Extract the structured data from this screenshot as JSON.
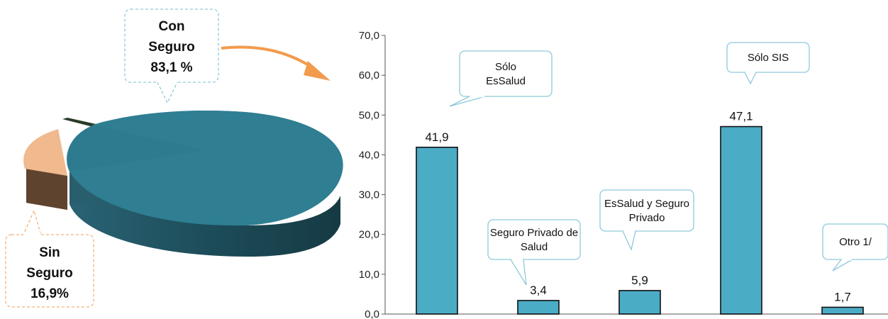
{
  "pie": {
    "slices": [
      {
        "label_lines": [
          "Con",
          "Seguro",
          "83,1 %"
        ],
        "value": 83.1,
        "color": "#2e7b8f"
      },
      {
        "label_lines": [
          "Sin",
          "Seguro",
          "16,9%"
        ],
        "value": 16.9,
        "color": "#f0b98e"
      }
    ]
  },
  "chart_data": {
    "type": "bar",
    "categories": [
      "Sólo EsSalud",
      "Seguro Privado de Salud",
      "EsSalud y Seguro Privado",
      "Sólo SIS",
      "Otro 1/"
    ],
    "category_label_lines": [
      [
        "Sólo",
        "EsSalud"
      ],
      [
        "Seguro Privado de",
        "Salud"
      ],
      [
        "EsSalud y Seguro",
        "Privado"
      ],
      [
        "Sólo SIS"
      ],
      [
        "Otro 1/"
      ]
    ],
    "values": [
      41.9,
      3.4,
      5.9,
      47.1,
      1.7
    ],
    "value_labels": [
      "41,9",
      "3,4",
      "5,9",
      "47,1",
      "1,7"
    ],
    "ylim": [
      0,
      70
    ],
    "yticks": [
      "0,0",
      "10,0",
      "20,0",
      "30,0",
      "40,0",
      "50,0",
      "60,0",
      "70,0"
    ],
    "bar_color": "#4bacc6",
    "grid": false
  }
}
